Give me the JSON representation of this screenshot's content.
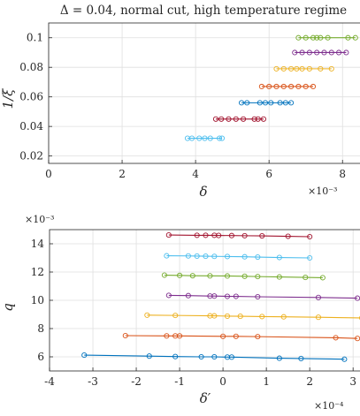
{
  "chart_data": [
    {
      "type": "scatter",
      "title": "Δ = 0.04, normal cut, high temperature regime",
      "xlabel": "δ",
      "ylabel": "1/ξ",
      "x_exponent_label": "×10⁻³",
      "xlim": [
        0,
        0.0085
      ],
      "ylim": [
        0.015,
        0.11
      ],
      "xticks": [
        0,
        0.002,
        0.004,
        0.006,
        0.008
      ],
      "xtick_labels": [
        "0",
        "2",
        "4",
        "6",
        "8"
      ],
      "yticks": [
        0.02,
        0.04,
        0.06,
        0.08,
        0.1
      ],
      "ytick_labels": [
        "0.02",
        "0.04",
        "0.06",
        "0.08",
        "0.1"
      ],
      "grid": true,
      "series": [
        {
          "color": "#4DBEEE",
          "y": 0.032,
          "x": [
            0.00378,
            0.0039,
            0.0041,
            0.00425,
            0.0044,
            0.00465,
            0.00472
          ]
        },
        {
          "color": "#A2142F",
          "y": 0.045,
          "x": [
            0.00455,
            0.0047,
            0.0049,
            0.0051,
            0.0053,
            0.0056,
            0.0057,
            0.00585
          ]
        },
        {
          "color": "#0072BD",
          "y": 0.056,
          "x": [
            0.00525,
            0.0054,
            0.00575,
            0.0059,
            0.00605,
            0.0063,
            0.00645,
            0.0066
          ]
        },
        {
          "color": "#D95319",
          "y": 0.067,
          "x": [
            0.0058,
            0.006,
            0.0062,
            0.0064,
            0.0066,
            0.0068,
            0.007,
            0.0072
          ]
        },
        {
          "color": "#EDB120",
          "y": 0.079,
          "x": [
            0.0062,
            0.0064,
            0.0066,
            0.00675,
            0.0069,
            0.0071,
            0.0074,
            0.0077
          ]
        },
        {
          "color": "#7E2F8E",
          "y": 0.09,
          "x": [
            0.0067,
            0.0069,
            0.0071,
            0.0073,
            0.0075,
            0.0077,
            0.0079,
            0.0081
          ]
        },
        {
          "color": "#77AC30",
          "y": 0.1,
          "x": [
            0.0068,
            0.007,
            0.0072,
            0.0073,
            0.0074,
            0.0076,
            0.00815,
            0.00835
          ]
        }
      ]
    },
    {
      "type": "scatter",
      "title": "",
      "xlabel": "δ′",
      "ylabel": "q",
      "x_exponent_label": "×10⁻⁴",
      "y_exponent_label": "×10⁻³",
      "xlim": [
        -0.0004,
        0.00032
      ],
      "ylim": [
        0.005,
        0.015
      ],
      "xticks": [
        -0.0004,
        -0.0003,
        -0.0002,
        -0.0001,
        0,
        0.0001,
        0.0002,
        0.0003
      ],
      "xtick_labels": [
        "-4",
        "-3",
        "-2",
        "-1",
        "0",
        "1",
        "2",
        "3"
      ],
      "yticks": [
        0.006,
        0.008,
        0.01,
        0.012,
        0.014
      ],
      "ytick_labels": [
        "6",
        "8",
        "10",
        "12",
        "14"
      ],
      "grid": true,
      "series": [
        {
          "color": "#0072BD",
          "x": [
            -0.00032,
            -0.00017,
            -0.00011,
            -5e-05,
            -2e-05,
            1e-05,
            2e-05,
            0.00013,
            0.00018,
            0.00028
          ],
          "y": [
            0.00612,
            0.00605,
            0.00602,
            0.006,
            0.006,
            0.00598,
            0.00598,
            0.0059,
            0.00588,
            0.00583
          ]
        },
        {
          "color": "#D95319",
          "x": [
            -0.000225,
            -0.00013,
            -0.00011,
            -0.0001,
            0.0,
            3e-05,
            8e-05,
            0.00026,
            0.00031
          ],
          "y": [
            0.0075,
            0.00748,
            0.00748,
            0.00748,
            0.00745,
            0.00745,
            0.00743,
            0.00735,
            0.0073
          ]
        },
        {
          "color": "#EDB120",
          "x": [
            -0.000175,
            -0.00011,
            -3e-05,
            -2e-05,
            1e-05,
            4e-05,
            9e-05,
            0.00014,
            0.00022,
            0.00032
          ],
          "y": [
            0.00895,
            0.00893,
            0.0089,
            0.0089,
            0.00888,
            0.00887,
            0.00885,
            0.00883,
            0.0088,
            0.00875
          ]
        },
        {
          "color": "#7E2F8E",
          "x": [
            -0.000125,
            -8e-05,
            -3e-05,
            -2e-05,
            1e-05,
            3e-05,
            8e-05,
            0.00022,
            0.00031
          ],
          "y": [
            0.01035,
            0.01033,
            0.0103,
            0.0103,
            0.01028,
            0.01028,
            0.01025,
            0.0102,
            0.01015
          ]
        },
        {
          "color": "#77AC30",
          "x": [
            -0.000135,
            -0.0001,
            -7e-05,
            -3e-05,
            1e-05,
            5e-05,
            8e-05,
            0.00013,
            0.00019,
            0.00023
          ],
          "y": [
            0.01178,
            0.01176,
            0.01174,
            0.01173,
            0.01172,
            0.0117,
            0.01168,
            0.01165,
            0.01162,
            0.0116
          ]
        },
        {
          "color": "#4DBEEE",
          "x": [
            -0.00013,
            -8e-05,
            -6e-05,
            -4e-05,
            -2e-05,
            1e-05,
            5e-05,
            8e-05,
            0.00013,
            0.0002
          ],
          "y": [
            0.01315,
            0.01314,
            0.01313,
            0.01312,
            0.01311,
            0.0131,
            0.01308,
            0.01306,
            0.01303,
            0.013
          ]
        },
        {
          "color": "#A2142F",
          "x": [
            -0.000125,
            -6e-05,
            -4e-05,
            -2e-05,
            -1e-05,
            2e-05,
            5e-05,
            9e-05,
            0.00015,
            0.0002
          ],
          "y": [
            0.01462,
            0.0146,
            0.0146,
            0.0146,
            0.01459,
            0.01458,
            0.01457,
            0.01456,
            0.01453,
            0.0145
          ]
        }
      ]
    }
  ]
}
